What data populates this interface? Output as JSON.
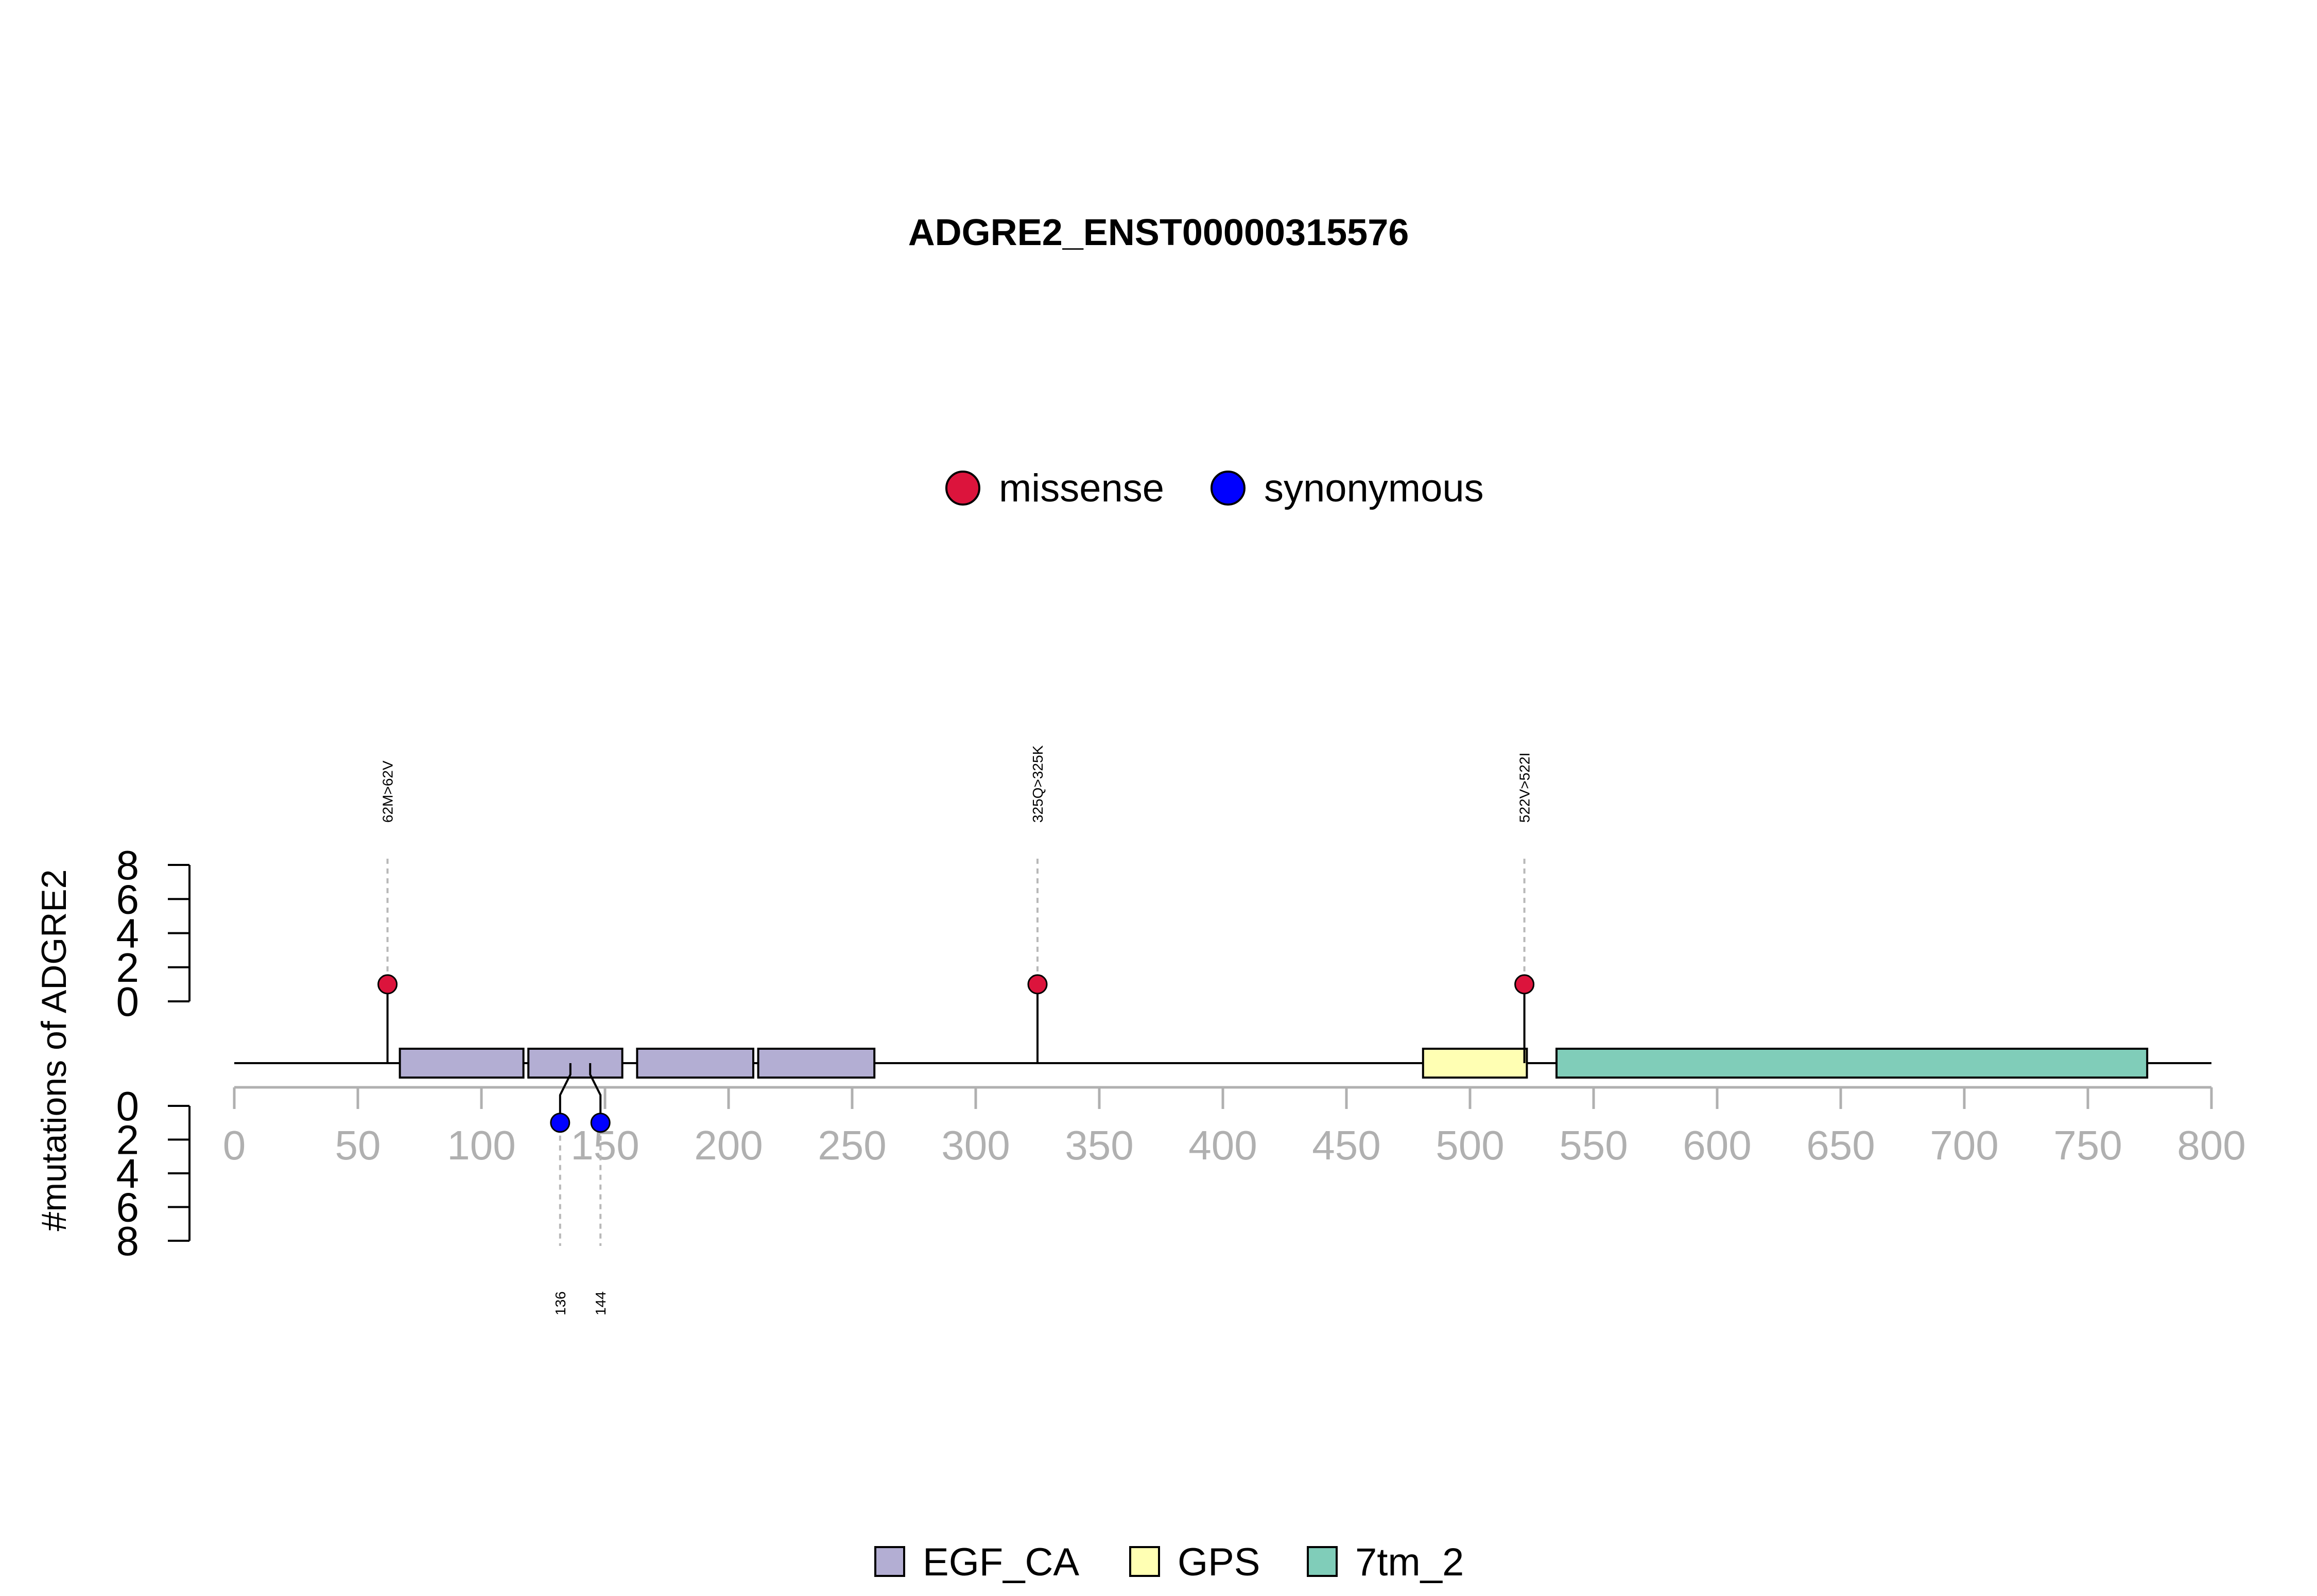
{
  "chart_data": {
    "type": "lollipop",
    "title": "ADGRE2_ENST00000315576",
    "ylabel": "#mutations of ADGRE2",
    "x_ticks": [
      0,
      50,
      100,
      150,
      200,
      250,
      300,
      350,
      400,
      450,
      500,
      550,
      600,
      650,
      700,
      750,
      800
    ],
    "xlim": [
      0,
      800
    ],
    "y_ticks_top": [
      0,
      2,
      4,
      6,
      8
    ],
    "y_ticks_bottom": [
      0,
      2,
      4,
      6,
      8
    ],
    "ylim": [
      0,
      8
    ],
    "mutation_legend": [
      {
        "label": "missense",
        "color": "#DC143C"
      },
      {
        "label": "synonymous",
        "color": "#0000FF"
      }
    ],
    "domain_legend": [
      {
        "label": "EGF_CA",
        "color": "#B3AED3"
      },
      {
        "label": "GPS",
        "color": "#FFFFB3"
      },
      {
        "label": "7tm_2",
        "color": "#80CDB9"
      }
    ],
    "domains": [
      {
        "name": "EGF_CA",
        "start": 67,
        "end": 117,
        "color": "#B3AED3"
      },
      {
        "name": "EGF_CA",
        "start": 119,
        "end": 157,
        "color": "#B3AED3"
      },
      {
        "name": "EGF_CA",
        "start": 163,
        "end": 210,
        "color": "#B3AED3"
      },
      {
        "name": "EGF_CA",
        "start": 212,
        "end": 259,
        "color": "#B3AED3"
      },
      {
        "name": "GPS",
        "start": 481,
        "end": 523,
        "color": "#FFFFB3"
      },
      {
        "name": "7tm_2",
        "start": 535,
        "end": 774,
        "color": "#80CDB9"
      }
    ],
    "top_mutations": [
      {
        "position": 62,
        "count": 1,
        "type": "missense",
        "label": "62M>62V",
        "color": "#DC143C"
      },
      {
        "position": 325,
        "count": 1,
        "type": "missense",
        "label": "325Q>325K",
        "color": "#DC143C"
      },
      {
        "position": 522,
        "count": 1,
        "type": "missense",
        "label": "522V>522I",
        "color": "#DC143C"
      }
    ],
    "bottom_mutations": [
      {
        "position": 136,
        "count": 1,
        "type": "synonymous",
        "label": "136",
        "color": "#0000FF"
      },
      {
        "position": 144,
        "count": 1,
        "type": "synonymous",
        "label": "144",
        "color": "#0000FF"
      }
    ]
  }
}
